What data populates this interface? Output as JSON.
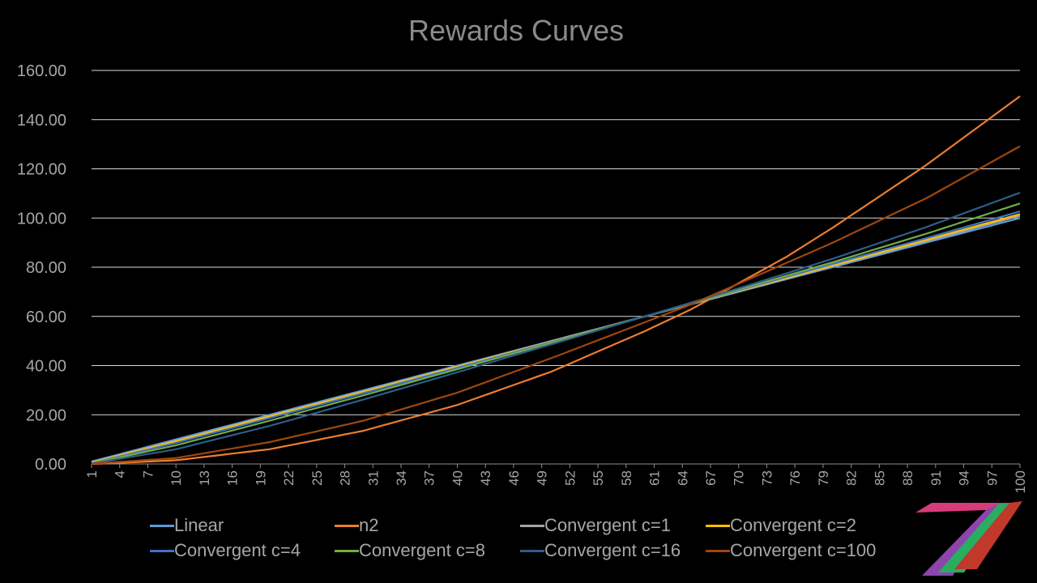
{
  "chart_data": {
    "type": "line",
    "title": "Rewards Curves",
    "xlabel": "",
    "ylabel": "",
    "x_range": [
      1,
      100
    ],
    "x_tick_labels": [
      "1",
      "4",
      "7",
      "10",
      "13",
      "16",
      "19",
      "22",
      "25",
      "28",
      "31",
      "34",
      "37",
      "40",
      "43",
      "46",
      "49",
      "52",
      "55",
      "58",
      "61",
      "64",
      "67",
      "70",
      "73",
      "76",
      "79",
      "82",
      "85",
      "88",
      "91",
      "94",
      "97",
      "100"
    ],
    "y_tick_labels": [
      "0.00",
      "20.00",
      "40.00",
      "60.00",
      "80.00",
      "100.00",
      "120.00",
      "140.00",
      "160.00"
    ],
    "ylim": [
      0,
      160
    ],
    "grid": "horizontal",
    "legend_position": "bottom",
    "series": [
      {
        "name": "Linear",
        "color": "#5b9bd5",
        "points": [
          [
            1,
            1
          ],
          [
            10,
            10
          ],
          [
            20,
            20
          ],
          [
            30,
            30
          ],
          [
            40,
            40
          ],
          [
            50,
            50
          ],
          [
            60,
            60
          ],
          [
            70,
            70
          ],
          [
            80,
            80
          ],
          [
            90,
            90
          ],
          [
            100,
            100
          ]
        ]
      },
      {
        "name": "n2",
        "color": "#ed7d31",
        "points": [
          [
            1,
            0
          ],
          [
            10,
            1.5
          ],
          [
            20,
            6
          ],
          [
            30,
            13.5
          ],
          [
            40,
            24
          ],
          [
            50,
            37.5
          ],
          [
            60,
            54
          ],
          [
            65,
            63
          ],
          [
            70,
            73.5
          ],
          [
            75,
            84
          ],
          [
            80,
            96
          ],
          [
            90,
            121.5
          ],
          [
            100,
            149.5
          ]
        ]
      },
      {
        "name": "Convergent c=1",
        "color": "#a5a5a5",
        "points": [
          [
            1,
            0.7
          ],
          [
            10,
            9.5
          ],
          [
            20,
            19.6
          ],
          [
            30,
            29.6
          ],
          [
            40,
            39.7
          ],
          [
            50,
            49.8
          ],
          [
            60,
            60
          ],
          [
            70,
            70.2
          ],
          [
            80,
            80.4
          ],
          [
            90,
            90.6
          ],
          [
            100,
            100.9
          ]
        ]
      },
      {
        "name": "Convergent c=2",
        "color": "#ffc000",
        "points": [
          [
            1,
            0.5
          ],
          [
            10,
            9.2
          ],
          [
            20,
            19.3
          ],
          [
            30,
            29.3
          ],
          [
            40,
            39.5
          ],
          [
            50,
            49.7
          ],
          [
            60,
            60
          ],
          [
            70,
            70.4
          ],
          [
            80,
            80.7
          ],
          [
            90,
            91.1
          ],
          [
            100,
            101.6
          ]
        ]
      },
      {
        "name": "Convergent c=4",
        "color": "#4472c4",
        "points": [
          [
            1,
            0.3
          ],
          [
            10,
            8.6
          ],
          [
            20,
            18.7
          ],
          [
            30,
            28.8
          ],
          [
            40,
            39.1
          ],
          [
            50,
            49.5
          ],
          [
            60,
            60
          ],
          [
            70,
            70.6
          ],
          [
            80,
            81.3
          ],
          [
            90,
            91.8
          ],
          [
            100,
            102.7
          ]
        ]
      },
      {
        "name": "Convergent c=8",
        "color": "#70ad47",
        "points": [
          [
            1,
            0.2
          ],
          [
            10,
            7.6
          ],
          [
            20,
            17.6
          ],
          [
            30,
            27.9
          ],
          [
            40,
            38.5
          ],
          [
            50,
            49.2
          ],
          [
            60,
            60
          ],
          [
            70,
            70.9
          ],
          [
            80,
            82
          ],
          [
            90,
            93.6
          ],
          [
            100,
            105.9
          ]
        ]
      },
      {
        "name": "Convergent c=16",
        "color": "#2e5d8a",
        "points": [
          [
            1,
            0.1
          ],
          [
            10,
            6
          ],
          [
            20,
            15.5
          ],
          [
            30,
            26.2
          ],
          [
            40,
            37.3
          ],
          [
            50,
            48.6
          ],
          [
            60,
            60
          ],
          [
            70,
            71.4
          ],
          [
            80,
            83.4
          ],
          [
            90,
            96.3
          ],
          [
            100,
            110.3
          ]
        ]
      },
      {
        "name": "Convergent c=100",
        "color": "#9e480e",
        "points": [
          [
            1,
            0.1
          ],
          [
            10,
            2.4
          ],
          [
            20,
            8.9
          ],
          [
            30,
            17.6
          ],
          [
            40,
            29
          ],
          [
            50,
            43
          ],
          [
            60,
            57.6
          ],
          [
            65,
            65
          ],
          [
            70,
            73.3
          ],
          [
            80,
            89.9
          ],
          [
            90,
            108
          ],
          [
            100,
            129.2
          ]
        ]
      }
    ]
  },
  "logo": {
    "name": "seven-logo",
    "colors": [
      "#d63b7a",
      "#8e44ad",
      "#27ae60",
      "#c0392b"
    ]
  }
}
